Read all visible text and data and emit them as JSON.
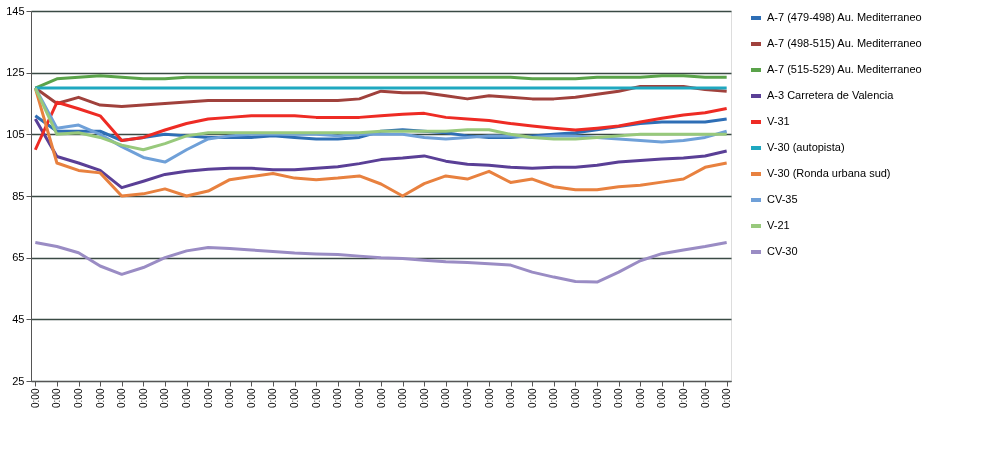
{
  "chart_data": {
    "type": "line",
    "categories": [
      "0:00",
      "0:00",
      "0:00",
      "0:00",
      "0:00",
      "0:00",
      "0:00",
      "0:00",
      "0:00",
      "0:00",
      "0:00",
      "0:00",
      "0:00",
      "0:00",
      "0:00",
      "0:00",
      "0:00",
      "0:00",
      "0:00",
      "0:00",
      "0:00",
      "0:00",
      "0:00",
      "0:00",
      "0:00",
      "0:00",
      "0:00",
      "0:00",
      "0:00",
      "0:00",
      "0:00",
      "0:00",
      "0:00"
    ],
    "ylim": [
      25,
      145
    ],
    "yticks": [
      25,
      45,
      65,
      85,
      105,
      125,
      145
    ],
    "grid": "y",
    "legend": "right",
    "marker": "none",
    "line_style": "solid",
    "series": [
      {
        "name": "A-7 (479-498) Au. Mediterraneo",
        "color": "#2e6eb5",
        "values": [
          111,
          106,
          106,
          106,
          103,
          104,
          105,
          104.5,
          104,
          104,
          104,
          104.5,
          104,
          103.5,
          103.5,
          104,
          106,
          106.5,
          106,
          105.5,
          104.5,
          104,
          104,
          104.5,
          105,
          105.5,
          106.5,
          107.5,
          108.5,
          109,
          109,
          109,
          110
        ]
      },
      {
        "name": "A-7 (498-515) Au. Mediterraneo",
        "color": "#a0413c",
        "values": [
          120,
          115,
          117,
          114.5,
          114,
          114.5,
          115,
          115.5,
          116,
          116,
          116,
          116,
          116,
          116,
          116,
          116.5,
          119,
          118.5,
          118.5,
          117.5,
          116.5,
          117.5,
          117,
          116.5,
          116.5,
          117,
          118,
          119,
          120.5,
          120.5,
          120.5,
          119.5,
          119
        ]
      },
      {
        "name": "A-7 (515-529) Au. Mediterraneo",
        "color": "#5aa34a",
        "values": [
          120,
          123,
          123.5,
          124,
          123.5,
          123,
          123,
          123.5,
          123.5,
          123.5,
          123.5,
          123.5,
          123.5,
          123.5,
          123.5,
          123.5,
          123.5,
          123.5,
          123.5,
          123.5,
          123.5,
          123.5,
          123.5,
          123,
          123,
          123,
          123.5,
          123.5,
          123.5,
          124,
          124,
          123.5,
          123.5
        ]
      },
      {
        "name": "A-3 Carretera de Valencia",
        "color": "#5a3f96",
        "values": [
          110,
          97.8,
          95.7,
          93.3,
          87.7,
          89.8,
          92,
          93,
          93.7,
          94,
          94,
          93.5,
          93.5,
          94,
          94.5,
          95.5,
          96.8,
          97.3,
          98,
          96.3,
          95.3,
          95,
          94.3,
          94,
          94.3,
          94.3,
          95,
          96,
          96.5,
          97,
          97.3,
          98,
          99.6
        ]
      },
      {
        "name": "V-31",
        "color": "#ee2b24",
        "values": [
          100,
          115.4,
          113.3,
          111,
          103,
          104,
          106.4,
          108.5,
          110,
          110.5,
          111,
          111,
          111,
          110.5,
          110.5,
          110.5,
          111,
          111.5,
          111.8,
          110.5,
          110,
          109.5,
          108.5,
          107.7,
          107,
          106.4,
          107,
          107.7,
          109,
          110.2,
          111.3,
          112,
          113.4
        ]
      },
      {
        "name": "V-30 (autopista)",
        "color": "#1fa8c0",
        "values": [
          120,
          120,
          120,
          120,
          120,
          120,
          120,
          120,
          120,
          120,
          120,
          120,
          120,
          120,
          120,
          120,
          120,
          120,
          120,
          120,
          120,
          120,
          120,
          120,
          120,
          120,
          120,
          120,
          120,
          120,
          120,
          120,
          120
        ]
      },
      {
        "name": "V-30 (Ronda urbana sud)",
        "color": "#e8813f",
        "values": [
          120,
          95.7,
          93.3,
          92.5,
          85,
          85.7,
          87.3,
          85,
          86.6,
          90.3,
          91.3,
          92.3,
          90.8,
          90.3,
          90.8,
          91.5,
          88.9,
          85,
          89,
          91.5,
          90.5,
          93,
          89.4,
          90.5,
          88,
          87,
          87,
          88,
          88.5,
          89.5,
          90.5,
          94.3,
          95.7
        ]
      },
      {
        "name": "CV-35",
        "color": "#6fa0d8",
        "values": [
          120,
          107,
          108,
          105,
          101,
          97.5,
          96,
          100,
          103.5,
          104.5,
          105,
          105,
          105,
          105,
          104.5,
          105,
          105,
          105,
          104,
          103.5,
          104,
          104.5,
          104.5,
          104,
          104.5,
          104.5,
          104,
          103.5,
          103,
          102.5,
          103,
          104,
          106
        ]
      },
      {
        "name": "V-21",
        "color": "#98c97c",
        "values": [
          120,
          105,
          105.5,
          104,
          101.5,
          100,
          102,
          104.5,
          105.5,
          105.5,
          105.5,
          105.5,
          105.5,
          105.5,
          105.5,
          105.5,
          106,
          106,
          106,
          106,
          106.5,
          106.5,
          105,
          104,
          103.5,
          103.5,
          104,
          104.5,
          105,
          105,
          105,
          105,
          105
        ]
      },
      {
        "name": "CV-30",
        "color": "#9a8cc4",
        "values": [
          69.9,
          68.6,
          66.6,
          62.3,
          59.6,
          61.8,
          65,
          67.2,
          68.3,
          68,
          67.5,
          67,
          66.5,
          66.2,
          66,
          65.5,
          65,
          64.7,
          64.2,
          63.7,
          63.4,
          63,
          62.6,
          60.3,
          58.7,
          57.3,
          57.1,
          60.3,
          64,
          66.3,
          67.5,
          68.6,
          69.9
        ]
      }
    ]
  }
}
